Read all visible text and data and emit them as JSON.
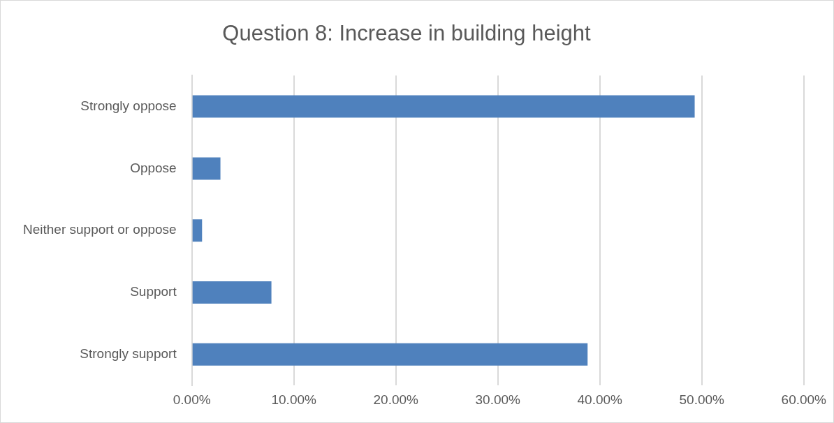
{
  "chart_data": {
    "type": "bar",
    "title": "Question 8: Increase in building height",
    "orientation": "horizontal",
    "categories": [
      "Strongly oppose",
      "Oppose",
      "Neither support or oppose",
      "Support",
      "Strongly support"
    ],
    "values": [
      49.3,
      2.8,
      1.0,
      7.8,
      38.8
    ],
    "color": "#4f81bd",
    "xlim": [
      0,
      60
    ],
    "xticks": [
      {
        "value": 0,
        "label": "0.00%"
      },
      {
        "value": 10,
        "label": "10.00%"
      },
      {
        "value": 20,
        "label": "20.00%"
      },
      {
        "value": 30,
        "label": "30.00%"
      },
      {
        "value": 40,
        "label": "40.00%"
      },
      {
        "value": 50,
        "label": "50.00%"
      },
      {
        "value": 60,
        "label": "60.00%"
      }
    ],
    "grid": "x",
    "legend": false
  }
}
